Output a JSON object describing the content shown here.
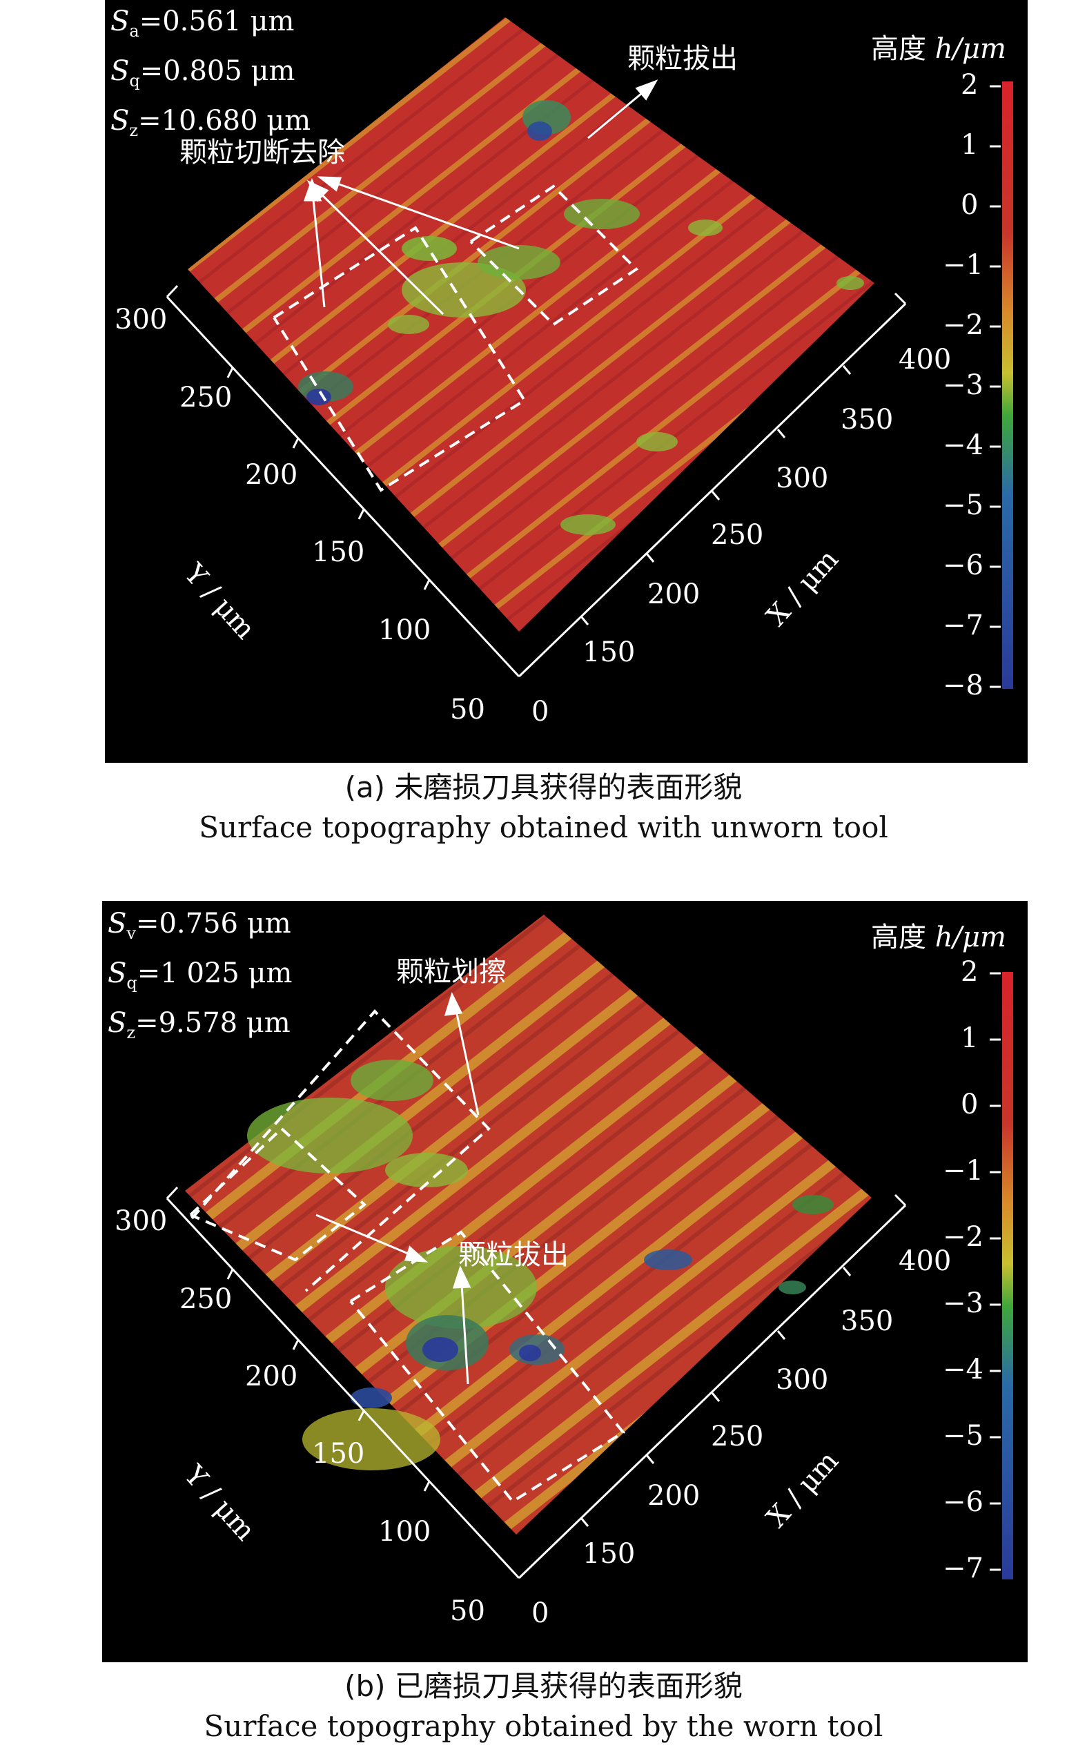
{
  "panels": [
    {
      "stats": [
        {
          "sym": "S",
          "sub": "a",
          "val": "=0.561 μm"
        },
        {
          "sym": "S",
          "sub": "q",
          "val": "=0.805 μm"
        },
        {
          "sym": "S",
          "sub": "z",
          "val": "=10.680 μm"
        }
      ],
      "annotations": [
        "颗粒切断去除",
        "颗粒拔出"
      ],
      "colorbar": {
        "label": "高度",
        "unit": "h/μm",
        "ticks": [
          "2",
          "1",
          "0",
          "−1",
          "−2",
          "−3",
          "−4",
          "−5",
          "−6",
          "−7",
          "−8"
        ]
      },
      "y_axis": {
        "label": "Y / μm",
        "ticks": [
          "300",
          "250",
          "200",
          "150",
          "100",
          "50"
        ]
      },
      "x_axis": {
        "label": "X / μm",
        "ticks": [
          "0",
          "150",
          "200",
          "250",
          "300",
          "350",
          "400"
        ]
      },
      "caption_cn": "(a) 未磨损刀具获得的表面形貌",
      "caption_en": "Surface topography obtained with unworn tool"
    },
    {
      "stats": [
        {
          "sym": "S",
          "sub": "v",
          "val": "=0.756 μm"
        },
        {
          "sym": "S",
          "sub": "q",
          "val": "=1 025 μm"
        },
        {
          "sym": "S",
          "sub": "z",
          "val": "=9.578 μm"
        }
      ],
      "annotations": [
        "颗粒划擦",
        "颗粒拔出"
      ],
      "colorbar": {
        "label": "高度",
        "unit": "h/μm",
        "ticks": [
          "2",
          "1",
          "0",
          "−1",
          "−2",
          "−3",
          "−4",
          "−5",
          "−6",
          "−7"
        ]
      },
      "y_axis": {
        "label": "Y / μm",
        "ticks": [
          "300",
          "250",
          "200",
          "150",
          "100",
          "50"
        ]
      },
      "x_axis": {
        "label": "X / μm",
        "ticks": [
          "0",
          "150",
          "200",
          "250",
          "300",
          "350",
          "400"
        ]
      },
      "caption_cn": "(b) 已磨损刀具获得的表面形貌",
      "caption_en": "Surface topography obtained by the worn tool"
    }
  ],
  "colors": {
    "peak": "#c0392b",
    "mid": "#8cc63f",
    "low": "#2d3f8f"
  }
}
